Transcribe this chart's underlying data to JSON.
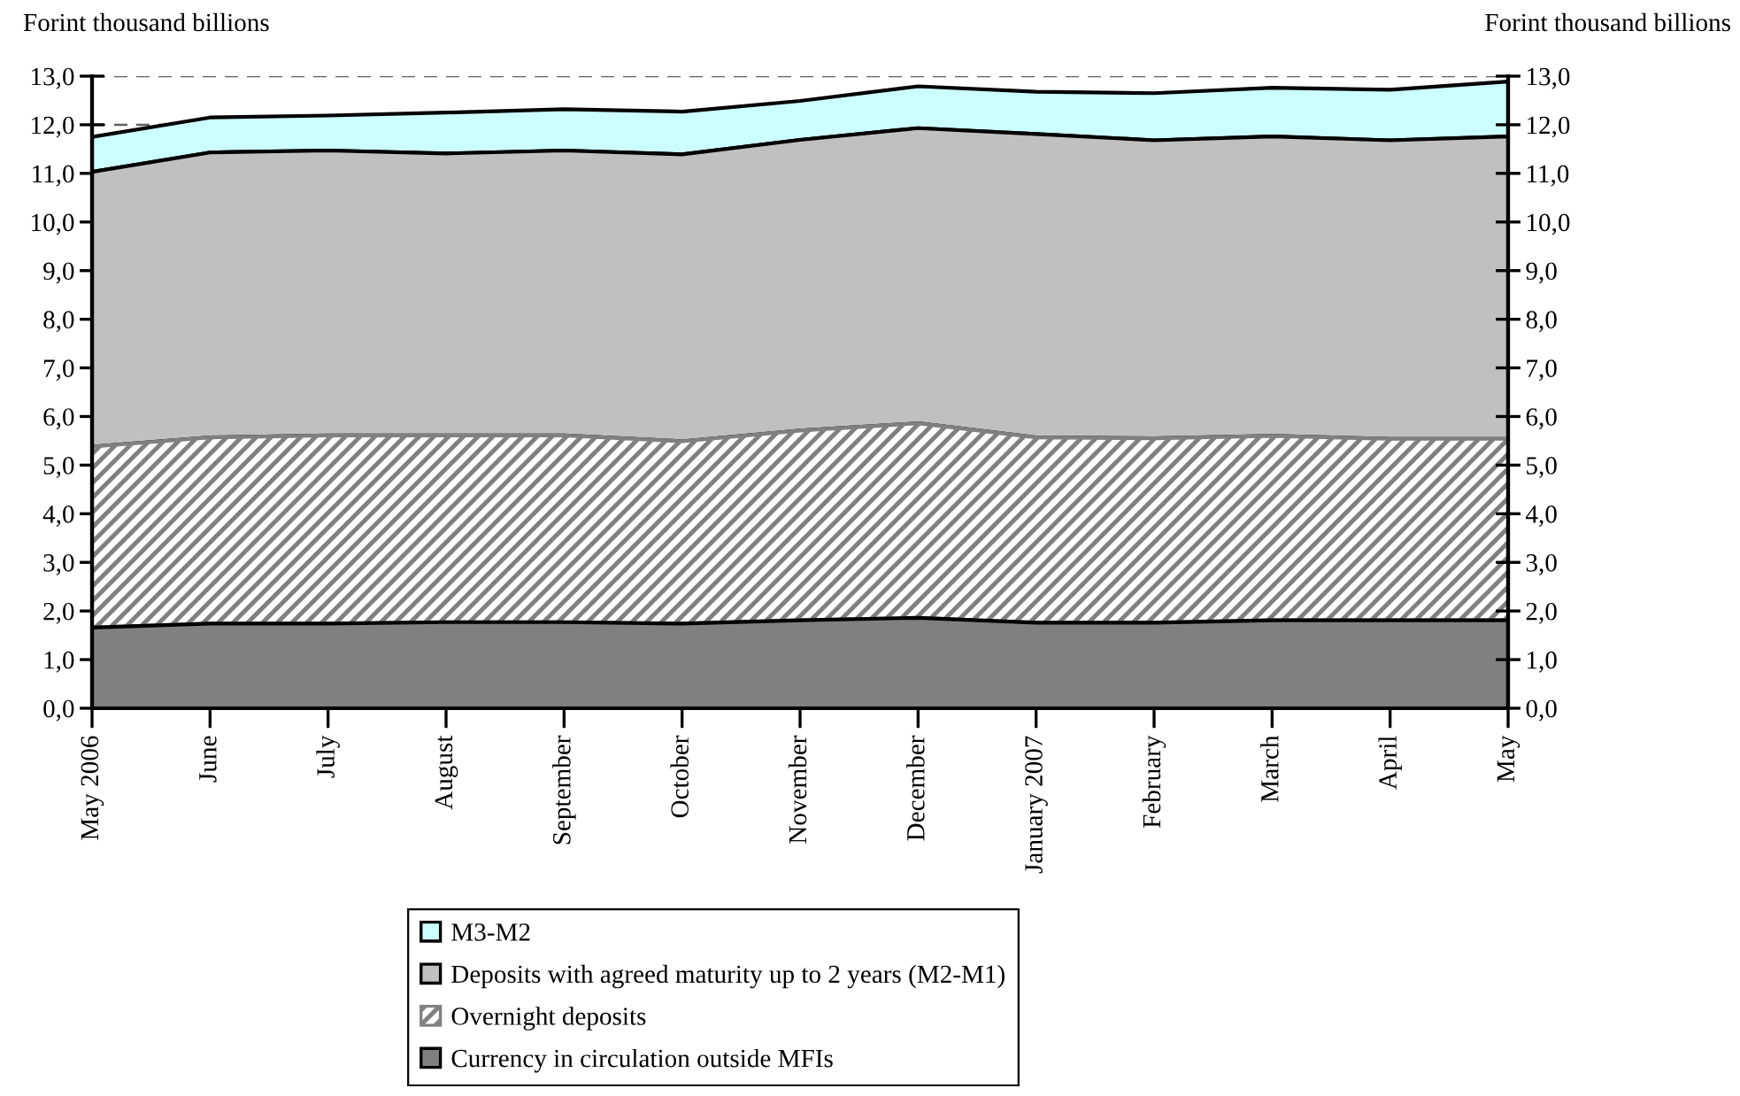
{
  "chart_data": {
    "type": "area",
    "stacked": true,
    "ylabel": "Forint thousand billions",
    "y2label": "Forint thousand billions",
    "categories": [
      "May 2006",
      "June",
      "July",
      "August",
      "September",
      "October",
      "November",
      "December",
      "January 2007",
      "February",
      "March",
      "April",
      "May"
    ],
    "series": [
      {
        "name": "Currency in circulation outside MFIs",
        "color": "#808080",
        "values": [
          1.66,
          1.74,
          1.74,
          1.77,
          1.77,
          1.74,
          1.81,
          1.86,
          1.76,
          1.76,
          1.81,
          1.81,
          1.81
        ]
      },
      {
        "name": "Overnight deposits",
        "color": "#808080",
        "values": [
          3.72,
          3.83,
          3.87,
          3.84,
          3.84,
          3.75,
          3.9,
          4.0,
          3.81,
          3.79,
          3.79,
          3.73,
          3.73
        ]
      },
      {
        "name": "Deposits with agreed maturity up to 2 years (M2-M1)",
        "color": "#c0c0c0",
        "values": [
          5.65,
          5.86,
          5.86,
          5.8,
          5.86,
          5.9,
          5.98,
          6.07,
          6.24,
          6.13,
          6.16,
          6.14,
          6.22
        ]
      },
      {
        "name": "M3-M2",
        "color": "#ccffff",
        "values": [
          0.72,
          0.72,
          0.72,
          0.84,
          0.85,
          0.88,
          0.8,
          0.86,
          0.87,
          0.97,
          1.0,
          1.04,
          1.13
        ]
      }
    ],
    "ylim": [
      0,
      13
    ],
    "yticks": [
      {
        "value": 0,
        "label": "0,0"
      },
      {
        "value": 1,
        "label": "1,0"
      },
      {
        "value": 2,
        "label": "2,0"
      },
      {
        "value": 3,
        "label": "3,0"
      },
      {
        "value": 4,
        "label": "4,0"
      },
      {
        "value": 5,
        "label": "5,0"
      },
      {
        "value": 6,
        "label": "6,0"
      },
      {
        "value": 7,
        "label": "7,0"
      },
      {
        "value": 8,
        "label": "8,0"
      },
      {
        "value": 9,
        "label": "9,0"
      },
      {
        "value": 10,
        "label": "10,0"
      },
      {
        "value": 11,
        "label": "11,0"
      },
      {
        "value": 12,
        "label": "12,0"
      },
      {
        "value": 13,
        "label": "13,0"
      }
    ],
    "y2lim": [
      0,
      13
    ],
    "y2ticks": [
      {
        "value": 0,
        "label": "0,0"
      },
      {
        "value": 1,
        "label": "1,0"
      },
      {
        "value": 2,
        "label": "2,0"
      },
      {
        "value": 3,
        "label": "3,0"
      },
      {
        "value": 4,
        "label": "4,0"
      },
      {
        "value": 5,
        "label": "5,0"
      },
      {
        "value": 6,
        "label": "6,0"
      },
      {
        "value": 7,
        "label": "7,0"
      },
      {
        "value": 8,
        "label": "8,0"
      },
      {
        "value": 9,
        "label": "9,0"
      },
      {
        "value": 10,
        "label": "10,0"
      },
      {
        "value": 11,
        "label": "11,0"
      },
      {
        "value": 12,
        "label": "12,0"
      },
      {
        "value": 13,
        "label": "13,0"
      }
    ],
    "grid": "y",
    "legend": "bottom"
  }
}
